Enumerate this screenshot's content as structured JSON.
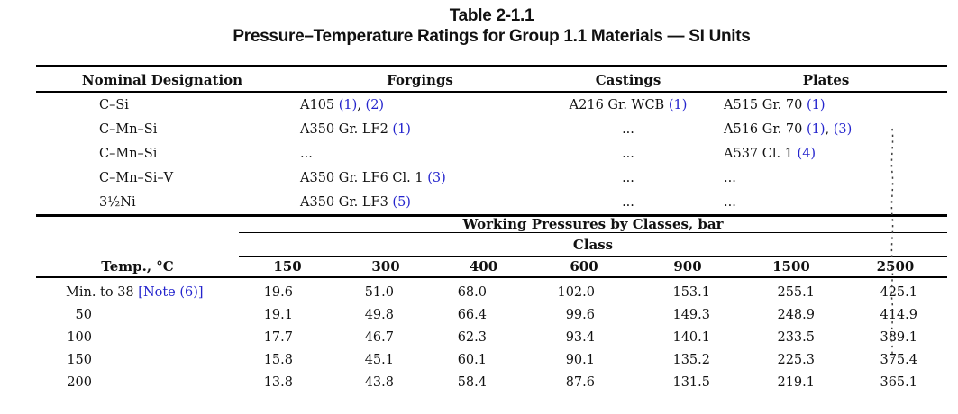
{
  "title": "Table 2-1.1",
  "subtitle": "Pressure–Temperature Ratings for Group 1.1 Materials — SI Units",
  "link_color": "#2424cd",
  "materials_table": {
    "headers": [
      "Nominal Designation",
      "Forgings",
      "Castings",
      "Plates"
    ],
    "rows": [
      {
        "designation": "C–Si",
        "forgings": [
          {
            "t": "A105 "
          },
          {
            "t": "(1)",
            "link": true
          },
          {
            "t": ", "
          },
          {
            "t": "(2)",
            "link": true
          }
        ],
        "castings": [
          {
            "t": "A216 Gr. WCB "
          },
          {
            "t": "(1)",
            "link": true
          }
        ],
        "plates": [
          {
            "t": "A515 Gr. 70 "
          },
          {
            "t": "(1)",
            "link": true
          }
        ]
      },
      {
        "designation": "C–Mn–Si",
        "forgings": [
          {
            "t": "A350 Gr. LF2 "
          },
          {
            "t": "(1)",
            "link": true
          }
        ],
        "castings": [
          {
            "t": "..."
          }
        ],
        "plates": [
          {
            "t": "A516 Gr. 70 "
          },
          {
            "t": "(1)",
            "link": true
          },
          {
            "t": ", "
          },
          {
            "t": "(3)",
            "link": true
          }
        ]
      },
      {
        "designation": "C–Mn–Si",
        "forgings": [
          {
            "t": "..."
          }
        ],
        "castings": [
          {
            "t": "..."
          }
        ],
        "plates": [
          {
            "t": "A537 Cl. 1 "
          },
          {
            "t": "(4)",
            "link": true
          }
        ]
      },
      {
        "designation": "C–Mn–Si–V",
        "forgings": [
          {
            "t": "A350 Gr. LF6 Cl. 1 "
          },
          {
            "t": "(3)",
            "link": true
          }
        ],
        "castings": [
          {
            "t": "..."
          }
        ],
        "plates": [
          {
            "t": "..."
          }
        ]
      },
      {
        "designation": "3½Ni",
        "forgings": [
          {
            "t": "A350 Gr. LF3 "
          },
          {
            "t": "(5)",
            "link": true
          }
        ],
        "castings": [
          {
            "t": "..."
          }
        ],
        "plates": [
          {
            "t": "..."
          }
        ]
      }
    ]
  },
  "pressure_table": {
    "span_header": "Working Pressures by Classes, bar",
    "class_header": "Class",
    "temp_header": "Temp., °C",
    "classes": [
      "150",
      "300",
      "400",
      "600",
      "900",
      "1500",
      "2500"
    ],
    "rows": [
      {
        "temp": [
          {
            "t": "Min. to 38 "
          },
          {
            "t": "[Note (6)]",
            "link": true
          }
        ],
        "values": [
          "19.6",
          "51.0",
          "68.0",
          "102.0",
          "153.1",
          "255.1",
          "425.1"
        ]
      },
      {
        "temp": [
          {
            "t": "50"
          }
        ],
        "values": [
          "19.1",
          "49.8",
          "66.4",
          "99.6",
          "149.3",
          "248.9",
          "414.9"
        ]
      },
      {
        "temp": [
          {
            "t": "100"
          }
        ],
        "values": [
          "17.7",
          "46.7",
          "62.3",
          "93.4",
          "140.1",
          "233.5",
          "389.1"
        ]
      },
      {
        "temp": [
          {
            "t": "150"
          }
        ],
        "values": [
          "15.8",
          "45.1",
          "60.1",
          "90.1",
          "135.2",
          "225.3",
          "375.4"
        ]
      },
      {
        "temp": [
          {
            "t": "200"
          }
        ],
        "values": [
          "13.8",
          "43.8",
          "58.4",
          "87.6",
          "131.5",
          "219.1",
          "365.1"
        ]
      }
    ]
  },
  "decorations": {
    "change_marker_icon": "dotted-revision-change-bar"
  }
}
